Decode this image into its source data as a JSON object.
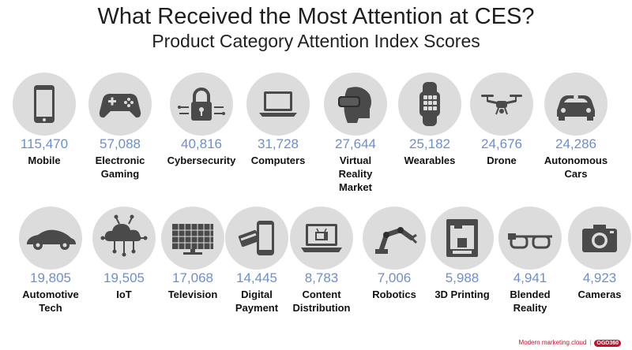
{
  "title": "What Received the Most Attention at CES?",
  "subtitle": "Product Category Attention Index Scores",
  "footer": {
    "text": "Modern marketing cloud",
    "logo": "OGD360"
  },
  "chart_data": {
    "type": "bar",
    "title": "What Received the Most Attention at CES?",
    "subtitle": "Product Category Attention Index Scores",
    "categories": [
      "Mobile",
      "Electronic Gaming",
      "Cybersecurity",
      "Computers",
      "Virtual Reality Market",
      "Wearables",
      "Drone",
      "Autonomous Cars",
      "Automotive Tech",
      "IoT",
      "Television",
      "Digital Payment",
      "Content Distribution",
      "Robotics",
      "3D Printing",
      "Blended Reality",
      "Cameras"
    ],
    "values": [
      115470,
      57088,
      40816,
      31728,
      27644,
      25182,
      24676,
      24286,
      19805,
      19505,
      17068,
      14445,
      8783,
      7006,
      5988,
      4941,
      4923
    ]
  },
  "items": [
    {
      "value": "115,470",
      "label1": "Mobile",
      "label2": "",
      "icon": "mobile-phone-icon"
    },
    {
      "value": "57,088",
      "label1": "Electronic",
      "label2": "Gaming",
      "icon": "gamepad-icon"
    },
    {
      "value": "40,816",
      "label1": "Cybersecurity",
      "label2": "",
      "icon": "padlock-icon"
    },
    {
      "value": "31,728",
      "label1": "Computers",
      "label2": "",
      "icon": "laptop-icon"
    },
    {
      "value": "27,644",
      "label1": "Virtual",
      "label2": "Reality",
      "label3": "Market",
      "icon": "vr-headset-icon"
    },
    {
      "value": "25,182",
      "label1": "Wearables",
      "label2": "",
      "icon": "smartwatch-icon"
    },
    {
      "value": "24,676",
      "label1": "Drone",
      "label2": "",
      "icon": "drone-icon"
    },
    {
      "value": "24,286",
      "label1": "Autonomous",
      "label2": "Cars",
      "icon": "car-icon"
    },
    {
      "value": "19,805",
      "label1": "Automotive",
      "label2": "Tech",
      "icon": "sports-car-icon"
    },
    {
      "value": "19,505",
      "label1": "IoT",
      "label2": "",
      "icon": "cloud-network-icon"
    },
    {
      "value": "17,068",
      "label1": "Television",
      "label2": "",
      "icon": "television-icon"
    },
    {
      "value": "14,445",
      "label1": "Digital",
      "label2": "Payment",
      "icon": "phone-card-icon"
    },
    {
      "value": "8,783",
      "label1": "Content",
      "label2": "Distribution",
      "icon": "laptop-tv-icon"
    },
    {
      "value": "7,006",
      "label1": "Robotics",
      "label2": "",
      "icon": "robot-arm-icon"
    },
    {
      "value": "5,988",
      "label1": "3D Printing",
      "label2": "",
      "icon": "3d-printer-icon"
    },
    {
      "value": "4,941",
      "label1": "Blended",
      "label2": "Reality",
      "icon": "smart-glasses-icon"
    },
    {
      "value": "4,923",
      "label1": "Cameras",
      "label2": "",
      "icon": "camera-icon"
    }
  ]
}
